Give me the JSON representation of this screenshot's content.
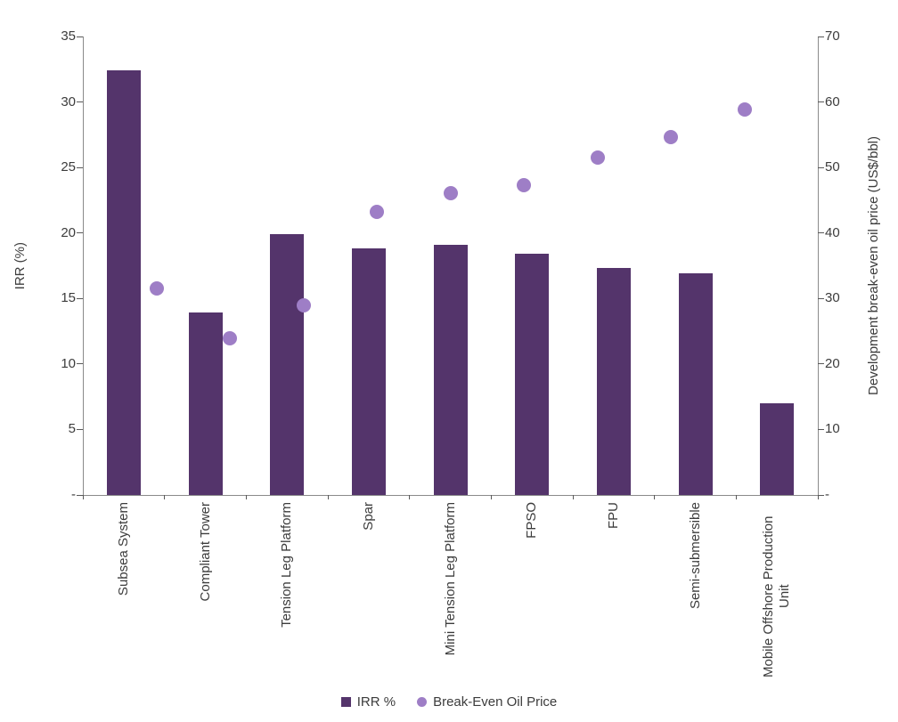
{
  "chart_data": {
    "type": "combo-bar-scatter",
    "title": "",
    "categories": [
      "Subsea System",
      "Compliant Tower",
      "Tension Leg Platform",
      "Spar",
      "Mini Tension Leg Platform",
      "FPSO",
      "FPU",
      "Semi-submersible",
      "Mobile Offshore Production Unit"
    ],
    "series": [
      {
        "name": "IRR %",
        "type": "bar",
        "axis": "left",
        "color": "#54346B",
        "values": [
          32.4,
          13.9,
          19.9,
          18.8,
          19.1,
          18.4,
          17.3,
          16.9,
          7.0
        ]
      },
      {
        "name": "Break-Even Oil Price",
        "type": "scatter",
        "axis": "right",
        "color": "#9E7EC6",
        "values": [
          31.6,
          23.9,
          28.9,
          43.2,
          46.1,
          47.3,
          51.5,
          54.6,
          58.9
        ]
      }
    ],
    "left_axis": {
      "title": "IRR (%)",
      "min": 0,
      "max": 35,
      "step": 5,
      "tick_labels": [
        "-",
        "5",
        "10",
        "15",
        "20",
        "25",
        "30",
        "35"
      ]
    },
    "right_axis": {
      "title": "Development break-even oil price (US$/bbl)",
      "min": 0,
      "max": 70,
      "step": 10,
      "tick_labels": [
        "-",
        "10",
        "20",
        "30",
        "40",
        "50",
        "60",
        "70"
      ]
    },
    "legend": {
      "position": "bottom"
    },
    "grid": false
  },
  "colors": {
    "bar": "#54346B",
    "marker": "#9E7EC6",
    "axis_line": "#8B8B8B",
    "tick_mark": "#595959",
    "text": "#3C3C3C",
    "background": "#FFFFFF"
  }
}
